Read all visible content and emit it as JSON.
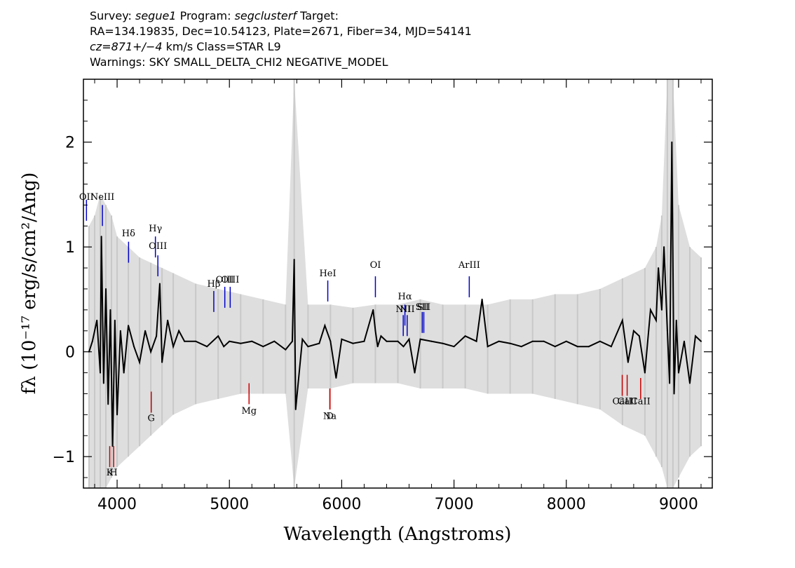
{
  "header": {
    "survey_label": "Survey:",
    "survey": "segue1",
    "program_label": "Program:",
    "program": "segclusterf",
    "target_label": "Target:",
    "line2": "RA=134.19835, Dec=10.54123, Plate=2671, Fiber=34, MJD=54141",
    "cz_prefix": "cz=871+/−4",
    "cz_suffix": "km/s Class=STAR L9",
    "warnings": "Warnings: SKY SMALL_DELTA_CHI2 NEGATIVE_MODEL"
  },
  "chart_data": {
    "type": "line",
    "xlabel": "Wavelength (Angstroms)",
    "ylabel": "fλ (10⁻¹⁷ erg/s/cm²/Ang)",
    "xlim": [
      3700,
      9300
    ],
    "ylim": [
      -1.3,
      2.6
    ],
    "xticks": [
      4000,
      5000,
      6000,
      7000,
      8000,
      9000
    ],
    "yticks": [
      -1,
      0,
      1,
      2
    ],
    "grid": false,
    "series": [
      {
        "color": "#c8c8c8",
        "role": "error band",
        "x": [
          3750,
          3800,
          3850,
          3900,
          3950,
          4000,
          4100,
          4200,
          4300,
          4400,
          4500,
          4700,
          4900,
          5100,
          5300,
          5500,
          5577,
          5700,
          5900,
          6100,
          6300,
          6500,
          6700,
          6900,
          7100,
          7300,
          7500,
          7700,
          7900,
          8100,
          8300,
          8500,
          8700,
          8800,
          8850,
          8900,
          8950,
          9000,
          9100,
          9200
        ],
        "y_upper": [
          1.2,
          1.3,
          1.5,
          1.4,
          1.3,
          1.1,
          1.0,
          0.9,
          0.85,
          0.8,
          0.75,
          0.65,
          0.6,
          0.55,
          0.5,
          0.45,
          2.6,
          0.45,
          0.45,
          0.42,
          0.45,
          0.45,
          0.5,
          0.45,
          0.45,
          0.45,
          0.5,
          0.5,
          0.55,
          0.55,
          0.6,
          0.7,
          0.8,
          1.0,
          1.3,
          2.6,
          2.6,
          1.4,
          1.0,
          0.9
        ],
        "y_lower": [
          -1.3,
          -1.3,
          -1.3,
          -1.3,
          -1.2,
          -1.1,
          -1.0,
          -0.9,
          -0.8,
          -0.7,
          -0.6,
          -0.5,
          -0.45,
          -0.4,
          -0.4,
          -0.4,
          -1.3,
          -0.35,
          -0.35,
          -0.3,
          -0.3,
          -0.3,
          -0.35,
          -0.35,
          -0.35,
          -0.4,
          -0.4,
          -0.4,
          -0.45,
          -0.5,
          -0.55,
          -0.7,
          -0.8,
          -1.0,
          -1.1,
          -1.3,
          -1.3,
          -1.2,
          -1.0,
          -0.9
        ]
      },
      {
        "color": "#000000",
        "role": "flux",
        "x": [
          3750,
          3780,
          3820,
          3850,
          3860,
          3880,
          3900,
          3920,
          3940,
          3960,
          3980,
          4000,
          4030,
          4060,
          4100,
          4150,
          4200,
          4250,
          4300,
          4350,
          4380,
          4400,
          4450,
          4500,
          4550,
          4600,
          4700,
          4800,
          4900,
          4950,
          5000,
          5100,
          5200,
          5300,
          5400,
          5500,
          5560,
          5577,
          5590,
          5650,
          5700,
          5800,
          5850,
          5900,
          5950,
          6000,
          6100,
          6200,
          6280,
          6300,
          6320,
          6350,
          6400,
          6500,
          6550,
          6600,
          6650,
          6700,
          6800,
          6900,
          7000,
          7100,
          7200,
          7250,
          7300,
          7400,
          7500,
          7600,
          7700,
          7800,
          7900,
          8000,
          8100,
          8200,
          8300,
          8400,
          8500,
          8550,
          8600,
          8650,
          8700,
          8750,
          8800,
          8820,
          8850,
          8870,
          8900,
          8920,
          8940,
          8960,
          8980,
          9000,
          9050,
          9100,
          9150,
          9200
        ],
        "y": [
          0,
          0.1,
          0.3,
          -0.2,
          1.1,
          -0.3,
          0.6,
          -0.5,
          0.4,
          -0.9,
          0.3,
          -0.6,
          0.2,
          -0.2,
          0.25,
          0.05,
          -0.1,
          0.2,
          0.0,
          0.15,
          0.65,
          -0.1,
          0.3,
          0.05,
          0.2,
          0.1,
          0.1,
          0.05,
          0.15,
          0.05,
          0.1,
          0.08,
          0.1,
          0.05,
          0.1,
          0.02,
          0.1,
          0.88,
          -0.55,
          0.12,
          0.05,
          0.08,
          0.25,
          0.1,
          -0.25,
          0.12,
          0.08,
          0.1,
          0.4,
          0.2,
          0.05,
          0.15,
          0.1,
          0.1,
          0.05,
          0.12,
          -0.2,
          0.12,
          0.1,
          0.08,
          0.05,
          0.15,
          0.1,
          0.5,
          0.05,
          0.1,
          0.08,
          0.05,
          0.1,
          0.1,
          0.05,
          0.1,
          0.05,
          0.05,
          0.1,
          0.05,
          0.3,
          -0.1,
          0.2,
          0.15,
          -0.2,
          0.4,
          0.3,
          0.8,
          0.4,
          1.0,
          0.2,
          -0.3,
          2.0,
          -0.4,
          0.3,
          -0.2,
          0.1,
          -0.3,
          0.15,
          0.1
        ]
      }
    ],
    "emission_lines": [
      {
        "label": "OII",
        "wavelength": 3727,
        "label_y": 1.45,
        "line": [
          1.25,
          1.45
        ],
        "color": "#0000cc"
      },
      {
        "label": "NeIII",
        "wavelength": 3869,
        "label_y": 1.45,
        "line": [
          1.2,
          1.4
        ],
        "color": "#0000cc"
      },
      {
        "label": "Hδ",
        "wavelength": 4102,
        "label_y": 1.1,
        "line": [
          0.85,
          1.05
        ],
        "color": "#0000cc"
      },
      {
        "label": "Hγ",
        "wavelength": 4341,
        "label_y": 1.15,
        "line": [
          0.9,
          1.1
        ],
        "color": "#0000cc"
      },
      {
        "label": "OIII",
        "wavelength": 4363,
        "label_y": 0.98,
        "line": [
          0.72,
          0.92
        ],
        "color": "#0000cc"
      },
      {
        "label": "Hβ",
        "wavelength": 4861,
        "label_y": 0.62,
        "line": [
          0.38,
          0.58
        ],
        "color": "#0000cc"
      },
      {
        "label": "OIII",
        "wavelength": 4959,
        "label_y": 0.66,
        "line": [
          0.42,
          0.62
        ],
        "color": "#0000cc"
      },
      {
        "label": "OIII",
        "wavelength": 5007,
        "label_y": 0.66,
        "line": [
          0.42,
          0.62
        ],
        "color": "#0000cc"
      },
      {
        "label": "HeI",
        "wavelength": 5876,
        "label_y": 0.72,
        "line": [
          0.48,
          0.68
        ],
        "color": "#0000cc"
      },
      {
        "label": "OI",
        "wavelength": 6300,
        "label_y": 0.8,
        "line": [
          0.52,
          0.72
        ],
        "color": "#0000cc"
      },
      {
        "label": "NII",
        "wavelength": 6548,
        "label_y": 0.38,
        "line": [
          0.15,
          0.35
        ],
        "color": "#0000cc"
      },
      {
        "label": "Hα",
        "wavelength": 6563,
        "label_y": 0.5,
        "line": [
          0.25,
          0.45
        ],
        "color": "#0000cc"
      },
      {
        "label": "NII",
        "wavelength": 6583,
        "label_y": 0.38,
        "line": [
          0.15,
          0.35
        ],
        "color": "#0000cc"
      },
      {
        "label": "SII",
        "wavelength": 6717,
        "label_y": 0.4,
        "line": [
          0.18,
          0.38
        ],
        "color": "#0000cc"
      },
      {
        "label": "SII",
        "wavelength": 6731,
        "label_y": 0.4,
        "line": [
          0.18,
          0.38
        ],
        "color": "#0000cc"
      },
      {
        "label": "ArIII",
        "wavelength": 7136,
        "label_y": 0.8,
        "line": [
          0.52,
          0.72
        ],
        "color": "#0000cc"
      }
    ],
    "absorption_lines": [
      {
        "label": "K",
        "wavelength": 3934,
        "label_y": -1.18,
        "line": [
          -1.1,
          -0.9
        ],
        "color": "#cc0000"
      },
      {
        "label": "H",
        "wavelength": 3969,
        "label_y": -1.18,
        "line": [
          -1.1,
          -0.9
        ],
        "color": "#cc0000"
      },
      {
        "label": "G",
        "wavelength": 4304,
        "label_y": -0.66,
        "line": [
          -0.58,
          -0.38
        ],
        "color": "#cc0000"
      },
      {
        "label": "Mg",
        "wavelength": 5175,
        "label_y": -0.59,
        "line": [
          -0.5,
          -0.3
        ],
        "color": "#cc0000"
      },
      {
        "label": "Na",
        "wavelength": 5894,
        "label_y": -0.64,
        "line": [
          -0.55,
          -0.35
        ],
        "color": "#cc0000"
      },
      {
        "label": "D",
        "wavelength": 5896,
        "label_y": -0.64,
        "line": [
          -0.55,
          -0.35
        ],
        "color": "#cc0000"
      },
      {
        "label": "CaII",
        "wavelength": 8498,
        "label_y": -0.5,
        "line": [
          -0.42,
          -0.22
        ],
        "color": "#cc0000"
      },
      {
        "label": "CaII",
        "wavelength": 8542,
        "label_y": -0.5,
        "line": [
          -0.42,
          -0.22
        ],
        "color": "#cc0000"
      },
      {
        "label": "CaII",
        "wavelength": 8662,
        "label_y": -0.5,
        "line": [
          -0.45,
          -0.25
        ],
        "color": "#cc0000"
      }
    ]
  }
}
